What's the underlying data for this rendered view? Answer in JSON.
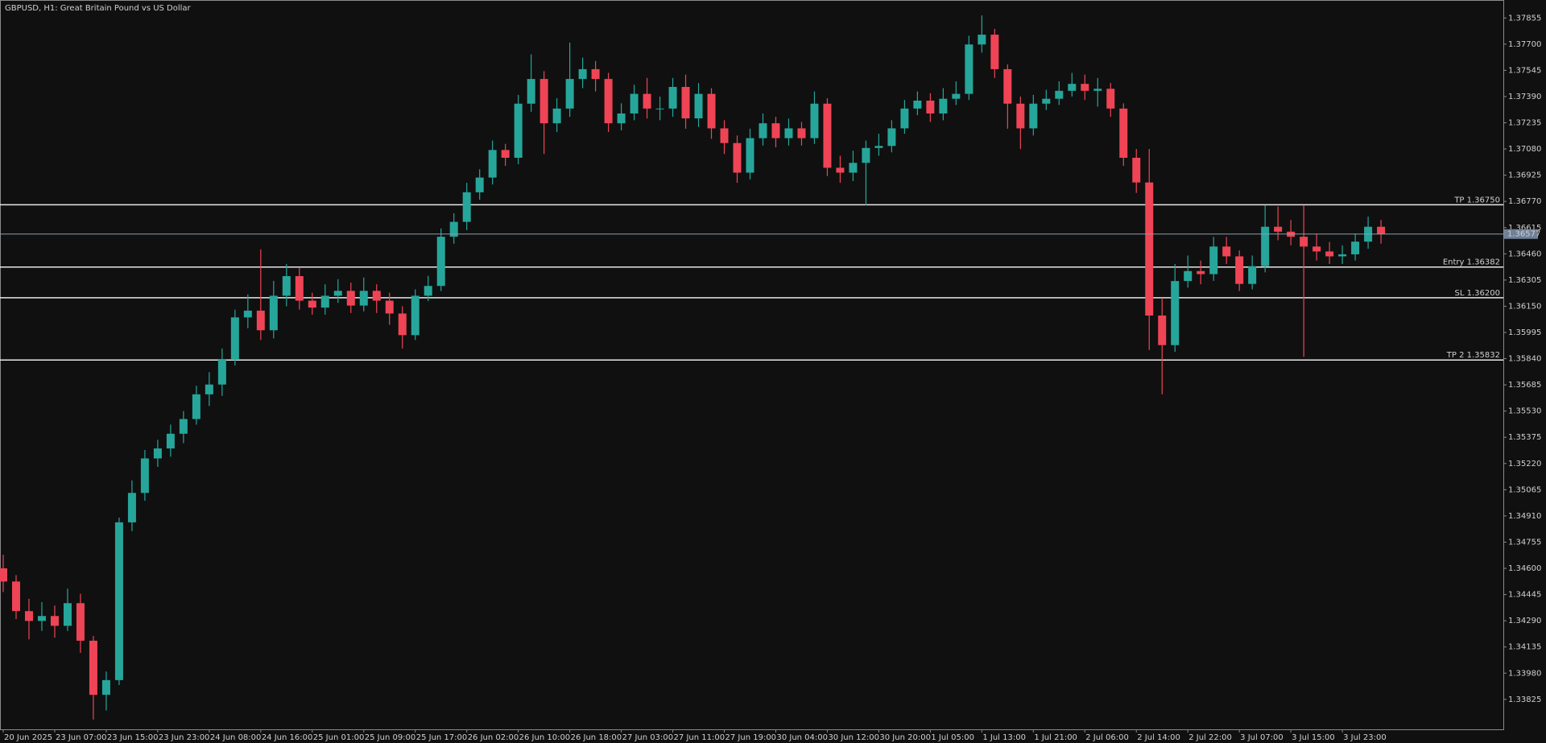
{
  "chart_data": {
    "type": "candlestick",
    "title": "GBPUSD, H1:  Great Britain Pound vs US Dollar",
    "up_color": "#26a69a",
    "down_color": "#ef4455",
    "open": [
      1.346,
      1.34522,
      1.34347,
      1.34289,
      1.34318,
      1.3426,
      1.34394,
      1.34172,
      1.33852,
      1.33939,
      1.34872,
      1.35046,
      1.3525,
      1.35309,
      1.35396,
      1.35483,
      1.35629,
      1.35687,
      1.35833,
      1.36084,
      1.36124,
      1.36008,
      1.36212,
      1.36328,
      1.36183,
      1.36142,
      1.36212,
      1.36241,
      1.36154,
      1.36241,
      1.36183,
      1.36107,
      1.35979,
      1.36212,
      1.3627,
      1.36561,
      1.36649,
      1.36824,
      1.36911,
      1.37074,
      1.37028,
      1.37348,
      1.37494,
      1.37232,
      1.37319,
      1.37494,
      1.37552,
      1.37494,
      1.37232,
      1.3729,
      1.37406,
      1.37319,
      1.37319,
      1.37447,
      1.37261,
      1.37406,
      1.37202,
      1.37115,
      1.3694,
      1.37144,
      1.37232,
      1.37144,
      1.37202,
      1.37144,
      1.37348,
      1.36969,
      1.3694,
      1.36998,
      1.37086,
      1.37098,
      1.37202,
      1.37319,
      1.37366,
      1.3729,
      1.37377,
      1.37406,
      1.37698,
      1.37756,
      1.37552,
      1.37348,
      1.37202,
      1.37348,
      1.37377,
      1.37424,
      1.37465,
      1.37424,
      1.37436,
      1.37319,
      1.37028,
      1.36882,
      1.36095,
      1.3592,
      1.36299,
      1.36358,
      1.3634,
      1.36503,
      1.36445,
      1.36282,
      1.36387,
      1.3662,
      1.36591,
      1.36561,
      1.36503,
      1.36474,
      1.36445,
      1.36457,
      1.36532,
      1.3662
    ],
    "high": [
      1.3468,
      1.3456,
      1.3442,
      1.344,
      1.3438,
      1.3448,
      1.3445,
      1.342,
      1.3399,
      1.349,
      1.3512,
      1.353,
      1.3536,
      1.3545,
      1.3553,
      1.3568,
      1.3576,
      1.359,
      1.3613,
      1.3622,
      1.36486,
      1.363,
      1.364,
      1.3638,
      1.3623,
      1.3628,
      1.3631,
      1.3629,
      1.3632,
      1.3628,
      1.3623,
      1.3615,
      1.3625,
      1.3633,
      1.3661,
      1.367,
      1.3688,
      1.3696,
      1.3713,
      1.3711,
      1.374,
      1.3764,
      1.3754,
      1.3738,
      1.37709,
      1.3762,
      1.376,
      1.3753,
      1.3735,
      1.3746,
      1.375,
      1.3739,
      1.375,
      1.3752,
      1.3747,
      1.3744,
      1.3725,
      1.3716,
      1.372,
      1.3729,
      1.3727,
      1.3726,
      1.3724,
      1.3742,
      1.3738,
      1.3704,
      1.3707,
      1.3713,
      1.3717,
      1.3725,
      1.3737,
      1.3742,
      1.3741,
      1.3744,
      1.3748,
      1.3775,
      1.3787,
      1.3779,
      1.3758,
      1.3739,
      1.374,
      1.3743,
      1.3748,
      1.3753,
      1.3752,
      1.375,
      1.3747,
      1.3735,
      1.3708,
      1.3708,
      1.362,
      1.364,
      1.3645,
      1.3642,
      1.3656,
      1.3656,
      1.3648,
      1.3645,
      1.36748,
      1.3674,
      1.3666,
      1.36748,
      1.3658,
      1.3653,
      1.3651,
      1.3658,
      1.3668,
      1.3666
    ],
    "low": [
      1.3446,
      1.343,
      1.3418,
      1.3423,
      1.3419,
      1.3423,
      1.341,
      1.33706,
      1.3376,
      1.3391,
      1.3482,
      1.35,
      1.352,
      1.3526,
      1.3534,
      1.3545,
      1.3556,
      1.3562,
      1.358,
      1.3602,
      1.3595,
      1.3596,
      1.3615,
      1.3613,
      1.361,
      1.361,
      1.3617,
      1.3611,
      1.3612,
      1.3611,
      1.3604,
      1.359,
      1.3595,
      1.3618,
      1.3624,
      1.3652,
      1.366,
      1.3678,
      1.3687,
      1.3698,
      1.3699,
      1.373,
      1.3705,
      1.3718,
      1.3727,
      1.3744,
      1.3742,
      1.3718,
      1.3719,
      1.3725,
      1.3726,
      1.3725,
      1.3727,
      1.372,
      1.3721,
      1.3714,
      1.3705,
      1.3688,
      1.369,
      1.371,
      1.3709,
      1.371,
      1.371,
      1.3711,
      1.3692,
      1.3688,
      1.3689,
      1.36748,
      1.3704,
      1.3706,
      1.3717,
      1.3728,
      1.3724,
      1.3725,
      1.3734,
      1.3737,
      1.3765,
      1.375,
      1.372,
      1.3708,
      1.3716,
      1.3731,
      1.3734,
      1.3739,
      1.3737,
      1.3733,
      1.3727,
      1.3698,
      1.3682,
      1.35891,
      1.35629,
      1.3588,
      1.3626,
      1.3628,
      1.363,
      1.364,
      1.3624,
      1.3625,
      1.3635,
      1.3654,
      1.3651,
      1.35851,
      1.3642,
      1.364,
      1.364,
      1.3642,
      1.3649,
      1.3652
    ],
    "close": [
      1.34522,
      1.34347,
      1.34289,
      1.34318,
      1.3426,
      1.34394,
      1.34172,
      1.33852,
      1.33939,
      1.34872,
      1.35046,
      1.3525,
      1.35309,
      1.35396,
      1.35483,
      1.35629,
      1.35687,
      1.35833,
      1.36084,
      1.36124,
      1.36008,
      1.36212,
      1.36328,
      1.36183,
      1.36142,
      1.36212,
      1.36241,
      1.36154,
      1.36241,
      1.36183,
      1.36107,
      1.35979,
      1.36212,
      1.3627,
      1.36561,
      1.36649,
      1.36824,
      1.36911,
      1.37074,
      1.37028,
      1.37348,
      1.37494,
      1.37232,
      1.37319,
      1.37494,
      1.37552,
      1.37494,
      1.37232,
      1.3729,
      1.37406,
      1.37319,
      1.37319,
      1.37447,
      1.37261,
      1.37406,
      1.37202,
      1.37115,
      1.3694,
      1.37144,
      1.37232,
      1.37144,
      1.37202,
      1.37144,
      1.37348,
      1.36969,
      1.3694,
      1.36998,
      1.37086,
      1.37098,
      1.37202,
      1.37319,
      1.37366,
      1.3729,
      1.37377,
      1.37406,
      1.37698,
      1.37756,
      1.37552,
      1.37348,
      1.37202,
      1.37348,
      1.37377,
      1.37424,
      1.37465,
      1.37424,
      1.37436,
      1.37319,
      1.37028,
      1.36882,
      1.36095,
      1.3592,
      1.36299,
      1.36358,
      1.3634,
      1.36503,
      1.36445,
      1.36282,
      1.36387,
      1.3662,
      1.36591,
      1.36561,
      1.36503,
      1.36474,
      1.36445,
      1.36457,
      1.36532,
      1.3662,
      1.36577
    ],
    "xlim": [
      -0.25,
      116.5
    ],
    "xticks": [
      {
        "value": 0,
        "label": "20 Jun 2025"
      },
      {
        "value": 4,
        "label": "23 Jun 07:00"
      },
      {
        "value": 8,
        "label": "23 Jun 15:00"
      },
      {
        "value": 12,
        "label": "23 Jun 23:00"
      },
      {
        "value": 16,
        "label": "24 Jun 08:00"
      },
      {
        "value": 20,
        "label": "24 Jun 16:00"
      },
      {
        "value": 24,
        "label": "25 Jun 01:00"
      },
      {
        "value": 28,
        "label": "25 Jun 09:00"
      },
      {
        "value": 32,
        "label": "25 Jun 17:00"
      },
      {
        "value": 36,
        "label": "26 Jun 02:00"
      },
      {
        "value": 40,
        "label": "26 Jun 10:00"
      },
      {
        "value": 44,
        "label": "26 Jun 18:00"
      },
      {
        "value": 48,
        "label": "27 Jun 03:00"
      },
      {
        "value": 52,
        "label": "27 Jun 11:00"
      },
      {
        "value": 56,
        "label": "27 Jun 19:00"
      },
      {
        "value": 60,
        "label": "30 Jun 04:00"
      },
      {
        "value": 64,
        "label": "30 Jun 12:00"
      },
      {
        "value": 68,
        "label": "30 Jun 20:00"
      },
      {
        "value": 72,
        "label": "1 Jul 05:00"
      },
      {
        "value": 76,
        "label": "1 Jul 13:00"
      },
      {
        "value": 80,
        "label": "1 Jul 21:00"
      },
      {
        "value": 84,
        "label": "2 Jul 06:00"
      },
      {
        "value": 88,
        "label": "2 Jul 14:00"
      },
      {
        "value": 92,
        "label": "2 Jul 22:00"
      },
      {
        "value": 96,
        "label": "3 Jul 07:00"
      },
      {
        "value": 100,
        "label": "3 Jul 15:00"
      },
      {
        "value": 104,
        "label": "3 Jul 23:00"
      }
    ],
    "ylim": [
      1.33648,
      1.37942
    ],
    "yticks": [
      1.37855,
      {
        "value": 1.377,
        "label": "1.37700"
      },
      1.37545,
      {
        "value": 1.3739,
        "label": "1.37390"
      },
      1.37235,
      {
        "value": 1.3708,
        "label": "1.37080"
      },
      1.36925,
      {
        "value": 1.3677,
        "label": "1.36770"
      },
      1.36615,
      {
        "value": 1.3646,
        "label": "1.36460"
      },
      1.36305,
      {
        "value": 1.3615,
        "label": "1.36150"
      },
      1.35995,
      {
        "value": 1.3584,
        "label": "1.35840"
      },
      1.35685,
      {
        "value": 1.3553,
        "label": "1.35530"
      },
      1.35375,
      {
        "value": 1.3522,
        "label": "1.35220"
      },
      1.35065,
      {
        "value": 1.3491,
        "label": "1.34910"
      },
      1.34755,
      {
        "value": 1.346,
        "label": "1.34600"
      },
      1.34445,
      {
        "value": 1.3429,
        "label": "1.34290"
      },
      1.34135,
      {
        "value": 1.3398,
        "label": "1.33980"
      },
      1.33825
    ],
    "levels": [
      {
        "value": 1.3675,
        "label": "TP 1.36750"
      },
      {
        "value": 1.36382,
        "label": "Entry 1.36382"
      },
      {
        "value": 1.362,
        "label": "SL 1.36200"
      },
      {
        "value": 1.35832,
        "label": "TP 2 1.35832"
      }
    ],
    "current_price": 1.36577
  }
}
